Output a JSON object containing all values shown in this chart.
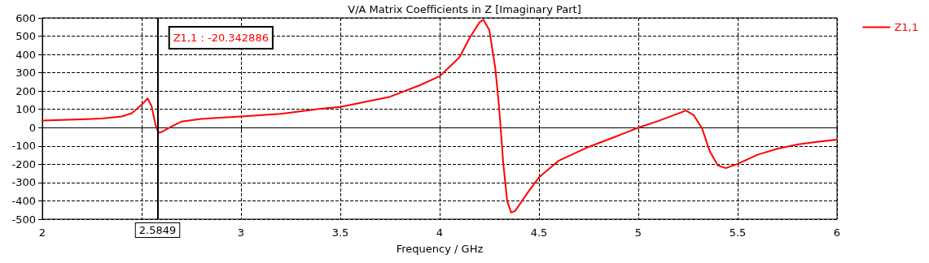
{
  "chart_data": {
    "type": "line",
    "title": "V/A Matrix Coefficients in Z [Imaginary Part]",
    "xlabel": "Frequency / GHz",
    "x": [
      2,
      2.2,
      2.3,
      2.4,
      2.45,
      2.5,
      2.53,
      2.55,
      2.57,
      2.585,
      2.6,
      2.65,
      2.7,
      2.8,
      3,
      3.2,
      3.4,
      3.5,
      3.75,
      3.9,
      4,
      4.1,
      4.15,
      4.2,
      4.22,
      4.25,
      4.28,
      4.3,
      4.32,
      4.34,
      4.36,
      4.38,
      4.45,
      4.5,
      4.6,
      4.75,
      4.9,
      5,
      5.1,
      5.2,
      5.24,
      5.28,
      5.32,
      5.36,
      5.4,
      5.44,
      5.5,
      5.6,
      5.7,
      5.8,
      5.9,
      6
    ],
    "series": [
      {
        "name": "Z1,1",
        "color": "#ff0000",
        "values": [
          39,
          46,
          50,
          61,
          79,
          125,
          160,
          118,
          13,
          -28,
          -24,
          6,
          33,
          48,
          61,
          75,
          103,
          113,
          169,
          232,
          281,
          385,
          489,
          575,
          590,
          533,
          325,
          102,
          -194,
          -402,
          -464,
          -455,
          -344,
          -272,
          -180,
          -105,
          -43,
          0,
          36,
          77,
          94,
          67,
          -2,
          -130,
          -206,
          -221,
          -198,
          -148,
          -115,
          -92,
          -78,
          -65
        ]
      }
    ],
    "xlim": [
      2,
      6
    ],
    "xticks": [
      2,
      {
        "value": 2.5,
        "label": null
      },
      3,
      3.5,
      4,
      4.5,
      5,
      5.5,
      6
    ],
    "ylim": [
      -500,
      600
    ],
    "yticks": [
      -500,
      -400,
      -300,
      -200,
      -100,
      0,
      100,
      200,
      300,
      400,
      500,
      600
    ],
    "ref_lines": [
      {
        "axis": "x",
        "value": 2.5849,
        "label": "2.5849",
        "color": "#000000",
        "line_style": "solid"
      }
    ],
    "annotations": [
      "Z1,1 : -20.342886"
    ],
    "grid": true,
    "legend": "top right",
    "marker": "none",
    "line_style": "solid"
  }
}
